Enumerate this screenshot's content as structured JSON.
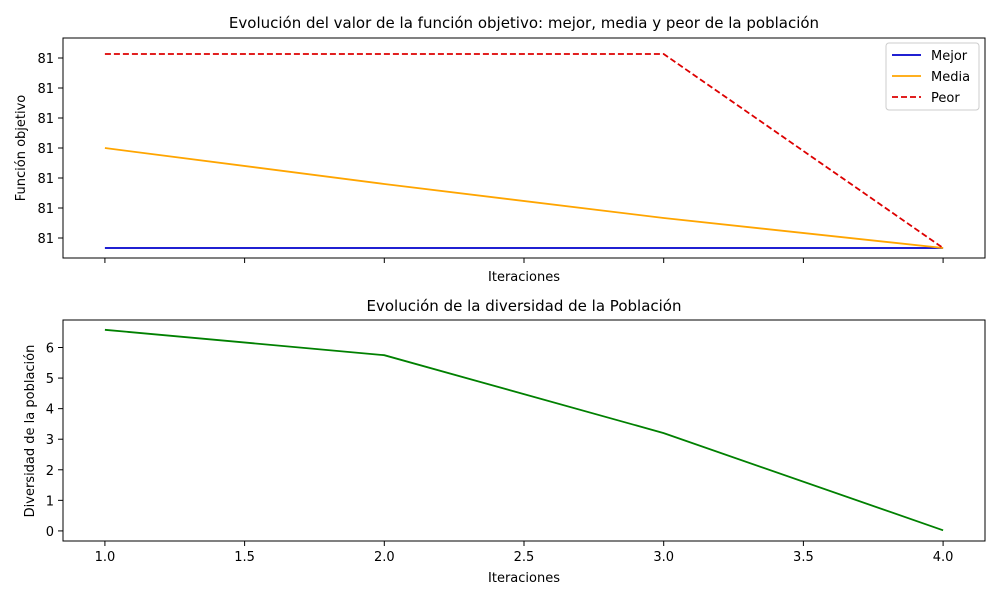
{
  "chart_data": [
    {
      "type": "line",
      "title": "Evolución del valor de la función objetivo: mejor, media y peor de la población",
      "xlabel": "Iteraciones",
      "ylabel": "Función objetivo",
      "x": [
        1,
        2,
        3,
        4
      ],
      "xlim": [
        0.85,
        4.15
      ],
      "ylim": [
        -0.05,
        1.05
      ],
      "ytick_values": [
        0.05,
        0.2,
        0.35,
        0.5,
        0.65,
        0.8,
        0.95
      ],
      "ytick_labels": [
        "81",
        "81",
        "81",
        "81",
        "81",
        "81",
        "81"
      ],
      "x_tick_labels_visible": false,
      "legend": "top-right",
      "grid": false,
      "series": [
        {
          "name": "Mejor",
          "color": "#0000cc",
          "style": "solid",
          "values": [
            0,
            0,
            0,
            0
          ]
        },
        {
          "name": "Media",
          "color": "#ffa500",
          "style": "solid",
          "values": [
            0.5,
            0.32,
            0.15,
            0
          ]
        },
        {
          "name": "Peor",
          "color": "#dd0000",
          "style": "dashed",
          "values": [
            0.97,
            0.97,
            0.97,
            0
          ]
        }
      ]
    },
    {
      "type": "line",
      "title": "Evolución de la diversidad de la Población",
      "xlabel": "Iteraciones",
      "ylabel": "Diversidad de la población",
      "xlim": [
        0.85,
        4.15
      ],
      "ylim": [
        -0.33,
        6.9
      ],
      "xticks": [
        1.0,
        1.5,
        2.0,
        2.5,
        3.0,
        3.5,
        4.0
      ],
      "xtick_labels": [
        "1.0",
        "1.5",
        "2.0",
        "2.5",
        "3.0",
        "3.5",
        "4.0"
      ],
      "yticks": [
        0,
        1,
        2,
        3,
        4,
        5,
        6
      ],
      "ytick_labels": [
        "0",
        "1",
        "2",
        "3",
        "4",
        "5",
        "6"
      ],
      "grid": false,
      "series": [
        {
          "color": "#008000",
          "style": "solid",
          "x": [
            1,
            2,
            3,
            4
          ],
          "values": [
            6.58,
            5.75,
            3.2,
            0.02
          ]
        }
      ]
    }
  ]
}
